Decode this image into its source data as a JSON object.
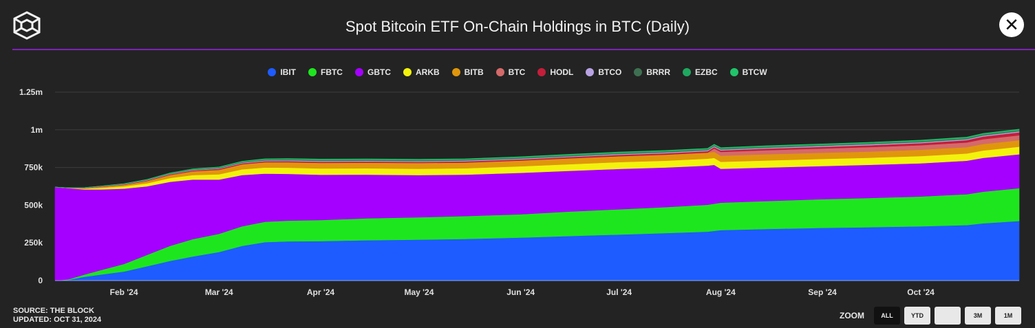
{
  "header": {
    "title": "Spot Bitcoin ETF On-Chain Holdings in BTC (Daily)",
    "close_label": "✕"
  },
  "footer": {
    "source": "SOURCE: THE BLOCK",
    "updated": "UPDATED: OCT 31, 2024"
  },
  "zoom": {
    "label": "ZOOM",
    "buttons": [
      "ALL",
      "YTD",
      "",
      "3M",
      "1M"
    ],
    "active": "ALL"
  },
  "colors": {
    "background": "#232323",
    "accent_line": "#7d22b8"
  },
  "chart_data": {
    "type": "area",
    "stacked": true,
    "title": "Spot Bitcoin ETF On-Chain Holdings in BTC (Daily)",
    "xlabel": "",
    "ylabel": "",
    "ylim": [
      0,
      1250000
    ],
    "y_ticks": [
      0,
      250000,
      500000,
      750000,
      1000000,
      1250000
    ],
    "y_tick_labels": [
      "0",
      "250k",
      "500k",
      "750k",
      "1m",
      "1.25m"
    ],
    "x_ticks": [
      "2024-02-01",
      "2024-03-01",
      "2024-04-01",
      "2024-05-01",
      "2024-06-01",
      "2024-07-01",
      "2024-08-01",
      "2024-09-01",
      "2024-10-01"
    ],
    "x_tick_labels": [
      "Feb '24",
      "Mar '24",
      "Apr '24",
      "May '24",
      "Jun '24",
      "Jul '24",
      "Aug '24",
      "Sep '24",
      "Oct '24"
    ],
    "x_range": [
      "2024-01-11",
      "2024-10-31"
    ],
    "grid": true,
    "legend_position": "top-center",
    "x": [
      "2024-01-11",
      "2024-01-15",
      "2024-01-20",
      "2024-01-25",
      "2024-02-01",
      "2024-02-08",
      "2024-02-15",
      "2024-02-22",
      "2024-03-01",
      "2024-03-08",
      "2024-03-15",
      "2024-03-22",
      "2024-04-01",
      "2024-04-15",
      "2024-05-01",
      "2024-05-15",
      "2024-06-01",
      "2024-06-15",
      "2024-07-01",
      "2024-07-15",
      "2024-07-28",
      "2024-07-30",
      "2024-08-01",
      "2024-08-15",
      "2024-09-01",
      "2024-09-15",
      "2024-10-01",
      "2024-10-15",
      "2024-10-20",
      "2024-10-31"
    ],
    "series": [
      {
        "name": "IBIT",
        "color": "#1e5cff",
        "values": [
          0,
          5000,
          25000,
          40000,
          60000,
          95000,
          130000,
          160000,
          190000,
          230000,
          255000,
          260000,
          262000,
          268000,
          272000,
          276000,
          285000,
          295000,
          305000,
          315000,
          325000,
          330000,
          335000,
          342000,
          350000,
          354000,
          360000,
          368000,
          380000,
          395000
        ]
      },
      {
        "name": "FBTC",
        "color": "#1ee61e",
        "values": [
          0,
          3000,
          15000,
          30000,
          50000,
          75000,
          100000,
          115000,
          120000,
          130000,
          135000,
          138000,
          140000,
          145000,
          148000,
          152000,
          155000,
          162000,
          168000,
          172000,
          178000,
          180000,
          182000,
          186000,
          190000,
          194000,
          198000,
          205000,
          210000,
          218000
        ]
      },
      {
        "name": "GBTC",
        "color": "#a500ff",
        "values": [
          620000,
          605000,
          565000,
          535000,
          500000,
          455000,
          425000,
          395000,
          360000,
          340000,
          320000,
          310000,
          300000,
          290000,
          280000,
          275000,
          275000,
          270000,
          268000,
          263000,
          260000,
          258000,
          225000,
          222000,
          220000,
          220000,
          220000,
          222000,
          224000,
          225000
        ]
      },
      {
        "name": "ARKB",
        "color": "#f2f20d",
        "values": [
          0,
          1000,
          5000,
          10000,
          15000,
          20000,
          25000,
          30000,
          35000,
          38000,
          40000,
          41000,
          42000,
          42000,
          42000,
          42000,
          43000,
          44000,
          45000,
          45000,
          46000,
          46000,
          46000,
          47000,
          47000,
          47000,
          48000,
          48000,
          49000,
          50000
        ]
      },
      {
        "name": "BITB",
        "color": "#e0960c",
        "values": [
          0,
          1000,
          4000,
          7000,
          10000,
          15000,
          20000,
          25000,
          30000,
          33000,
          35000,
          36000,
          37000,
          37000,
          38000,
          38000,
          38000,
          39000,
          39000,
          40000,
          40000,
          40000,
          40000,
          41000,
          41000,
          41000,
          42000,
          42000,
          43000,
          43000
        ]
      },
      {
        "name": "BTC",
        "color": "#d46a6a",
        "values": [
          0,
          0,
          0,
          0,
          0,
          0,
          0,
          0,
          0,
          0,
          0,
          0,
          0,
          0,
          0,
          0,
          0,
          0,
          0,
          0,
          0,
          22000,
          25000,
          27000,
          28000,
          29000,
          30000,
          31000,
          32000,
          33000
        ]
      },
      {
        "name": "HODL",
        "color": "#c41e3a",
        "values": [
          0,
          300,
          1000,
          2000,
          3000,
          4000,
          5000,
          6000,
          6500,
          7000,
          7500,
          7800,
          8000,
          8000,
          8000,
          8000,
          8500,
          9000,
          9500,
          10000,
          10000,
          10000,
          10500,
          11000,
          12000,
          13000,
          14000,
          16000,
          18000,
          20000
        ]
      },
      {
        "name": "BTCO",
        "color": "#b9a3e3",
        "values": [
          0,
          200,
          600,
          1000,
          1500,
          2000,
          2500,
          3000,
          3500,
          4000,
          4500,
          5000,
          5000,
          5000,
          5000,
          5000,
          5000,
          5000,
          5500,
          5500,
          5500,
          5500,
          5500,
          5500,
          5500,
          6000,
          6000,
          6000,
          6000,
          6000
        ]
      },
      {
        "name": "BRRR",
        "color": "#3f6f52",
        "values": [
          0,
          200,
          600,
          1000,
          1500,
          2000,
          2500,
          3000,
          3500,
          4000,
          4500,
          5000,
          5000,
          5000,
          5000,
          5000,
          5000,
          5000,
          5000,
          5000,
          5000,
          5000,
          5000,
          5000,
          5000,
          5000,
          5000,
          5000,
          5000,
          5000
        ]
      },
      {
        "name": "EZBC",
        "color": "#1fa85f",
        "values": [
          0,
          200,
          600,
          1000,
          1500,
          2000,
          2500,
          3000,
          3500,
          4000,
          4500,
          5000,
          5000,
          5000,
          5000,
          5000,
          5000,
          5500,
          5500,
          5500,
          5500,
          5500,
          6000,
          6000,
          6000,
          6000,
          6500,
          6500,
          7000,
          7000
        ]
      },
      {
        "name": "BTCW",
        "color": "#21c46a",
        "values": [
          0,
          100,
          300,
          500,
          700,
          900,
          1100,
          1300,
          1500,
          1700,
          1800,
          1900,
          2000,
          2000,
          2000,
          2000,
          2000,
          2000,
          2000,
          2000,
          2000,
          2000,
          2000,
          2000,
          2000,
          2000,
          2000,
          2000,
          2000,
          2000
        ]
      }
    ]
  }
}
